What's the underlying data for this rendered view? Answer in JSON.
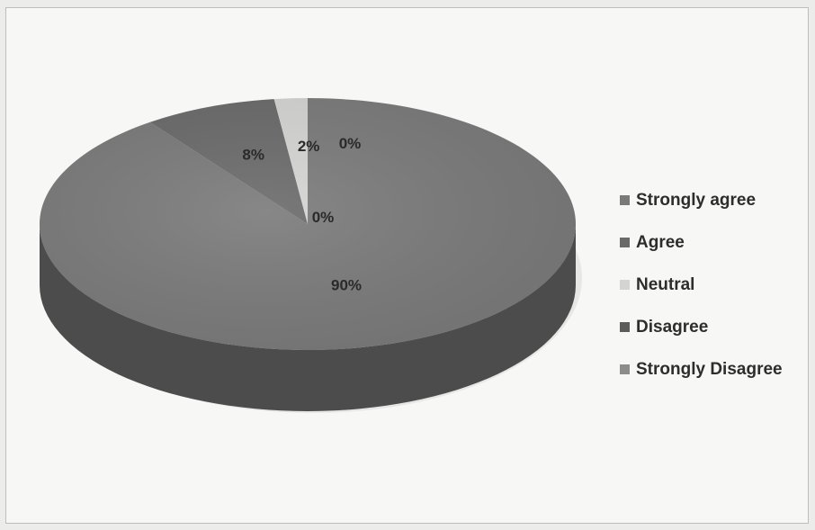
{
  "chart_data": {
    "type": "pie",
    "categories": [
      "Strongly agree",
      "Agree",
      "Neutral",
      "Disagree",
      "Strongly Disagree"
    ],
    "values": [
      90,
      8,
      2,
      0,
      0
    ],
    "data_labels": [
      "90%",
      "8%",
      "2%",
      "0%",
      "0%"
    ],
    "colors": [
      "#7a7a7a",
      "#6a6a6a",
      "#d4d4d2",
      "#5c5c5c",
      "#8c8c8c"
    ],
    "legend_position": "right",
    "style": "3d"
  }
}
